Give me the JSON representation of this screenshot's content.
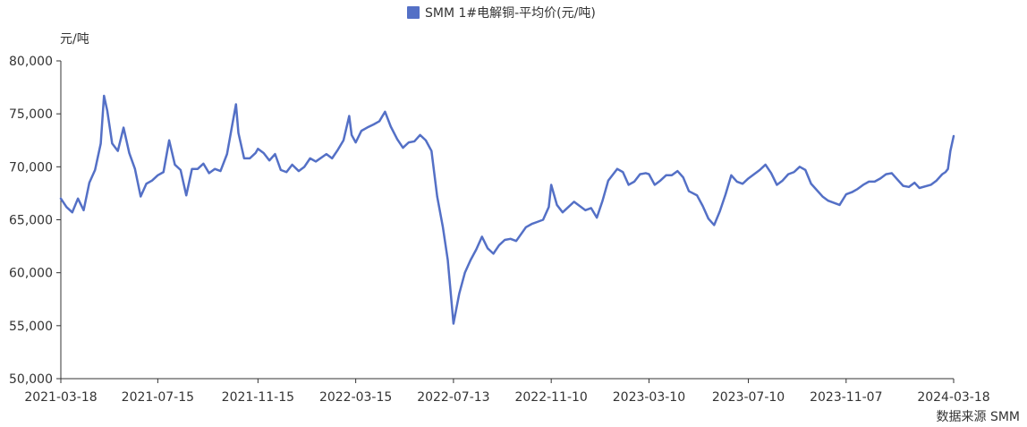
{
  "chart_data": {
    "type": "line",
    "ylabel": "元/吨",
    "source": "数据来源 SMM",
    "ylim": [
      50000,
      80000
    ],
    "yticks": [
      50000,
      55000,
      60000,
      65000,
      70000,
      75000,
      80000
    ],
    "ytick_labels": [
      "50,000",
      "55,000",
      "60,000",
      "65,000",
      "70,000",
      "75,000",
      "80,000"
    ],
    "xlim": [
      "2021-03-18",
      "2024-03-18"
    ],
    "xtick_labels": [
      "2021-03-18",
      "2021-07-15",
      "2021-11-15",
      "2022-03-15",
      "2022-07-13",
      "2022-11-10",
      "2023-03-10",
      "2023-07-10",
      "2023-11-07",
      "2024-03-18"
    ],
    "legend_position": "top-center",
    "grid": false,
    "colors": {
      "series": "#5470c6",
      "axis": "#333333"
    },
    "series": [
      {
        "name": "SMM 1#电解铜-平均价(元/吨)",
        "points": [
          [
            "2021-03-18",
            67000
          ],
          [
            "2021-03-25",
            66200
          ],
          [
            "2021-04-01",
            65700
          ],
          [
            "2021-04-08",
            67000
          ],
          [
            "2021-04-15",
            65900
          ],
          [
            "2021-04-22",
            68500
          ],
          [
            "2021-04-29",
            69700
          ],
          [
            "2021-05-06",
            72200
          ],
          [
            "2021-05-10",
            76700
          ],
          [
            "2021-05-14",
            75300
          ],
          [
            "2021-05-20",
            72200
          ],
          [
            "2021-05-27",
            71500
          ],
          [
            "2021-06-03",
            73700
          ],
          [
            "2021-06-10",
            71300
          ],
          [
            "2021-06-17",
            69800
          ],
          [
            "2021-06-24",
            67200
          ],
          [
            "2021-07-01",
            68400
          ],
          [
            "2021-07-08",
            68700
          ],
          [
            "2021-07-15",
            69200
          ],
          [
            "2021-07-22",
            69500
          ],
          [
            "2021-07-29",
            72500
          ],
          [
            "2021-08-05",
            70200
          ],
          [
            "2021-08-12",
            69700
          ],
          [
            "2021-08-19",
            67300
          ],
          [
            "2021-08-26",
            69800
          ],
          [
            "2021-09-02",
            69800
          ],
          [
            "2021-09-09",
            70300
          ],
          [
            "2021-09-16",
            69400
          ],
          [
            "2021-09-23",
            69800
          ],
          [
            "2021-09-30",
            69600
          ],
          [
            "2021-10-08",
            71200
          ],
          [
            "2021-10-15",
            74200
          ],
          [
            "2021-10-19",
            75900
          ],
          [
            "2021-10-22",
            73200
          ],
          [
            "2021-10-29",
            70800
          ],
          [
            "2021-11-05",
            70800
          ],
          [
            "2021-11-12",
            71300
          ],
          [
            "2021-11-15",
            71700
          ],
          [
            "2021-11-22",
            71300
          ],
          [
            "2021-11-29",
            70600
          ],
          [
            "2021-12-06",
            71200
          ],
          [
            "2021-12-13",
            69700
          ],
          [
            "2021-12-20",
            69500
          ],
          [
            "2021-12-27",
            70200
          ],
          [
            "2022-01-04",
            69600
          ],
          [
            "2022-01-11",
            70000
          ],
          [
            "2022-01-18",
            70800
          ],
          [
            "2022-01-25",
            70500
          ],
          [
            "2022-02-07",
            71200
          ],
          [
            "2022-02-14",
            70800
          ],
          [
            "2022-02-21",
            71600
          ],
          [
            "2022-02-28",
            72500
          ],
          [
            "2022-03-07",
            74800
          ],
          [
            "2022-03-10",
            73000
          ],
          [
            "2022-03-15",
            72300
          ],
          [
            "2022-03-22",
            73400
          ],
          [
            "2022-03-29",
            73700
          ],
          [
            "2022-04-06",
            74000
          ],
          [
            "2022-04-13",
            74300
          ],
          [
            "2022-04-20",
            75200
          ],
          [
            "2022-04-27",
            73800
          ],
          [
            "2022-05-05",
            72600
          ],
          [
            "2022-05-12",
            71800
          ],
          [
            "2022-05-19",
            72300
          ],
          [
            "2022-05-26",
            72400
          ],
          [
            "2022-06-02",
            73000
          ],
          [
            "2022-06-09",
            72500
          ],
          [
            "2022-06-16",
            71500
          ],
          [
            "2022-06-23",
            67200
          ],
          [
            "2022-06-30",
            64300
          ],
          [
            "2022-07-06",
            61200
          ],
          [
            "2022-07-13",
            55200
          ],
          [
            "2022-07-20",
            58000
          ],
          [
            "2022-07-27",
            60000
          ],
          [
            "2022-08-03",
            61200
          ],
          [
            "2022-08-10",
            62200
          ],
          [
            "2022-08-17",
            63400
          ],
          [
            "2022-08-24",
            62300
          ],
          [
            "2022-08-31",
            61800
          ],
          [
            "2022-09-07",
            62600
          ],
          [
            "2022-09-14",
            63100
          ],
          [
            "2022-09-21",
            63200
          ],
          [
            "2022-09-28",
            63000
          ],
          [
            "2022-10-10",
            64300
          ],
          [
            "2022-10-17",
            64600
          ],
          [
            "2022-10-24",
            64800
          ],
          [
            "2022-10-31",
            65000
          ],
          [
            "2022-11-07",
            66200
          ],
          [
            "2022-11-10",
            68300
          ],
          [
            "2022-11-17",
            66400
          ],
          [
            "2022-11-24",
            65700
          ],
          [
            "2022-12-01",
            66200
          ],
          [
            "2022-12-08",
            66700
          ],
          [
            "2022-12-15",
            66300
          ],
          [
            "2022-12-22",
            65900
          ],
          [
            "2022-12-29",
            66100
          ],
          [
            "2023-01-05",
            65200
          ],
          [
            "2023-01-12",
            66800
          ],
          [
            "2023-01-19",
            68700
          ],
          [
            "2023-01-30",
            69800
          ],
          [
            "2023-02-06",
            69500
          ],
          [
            "2023-02-13",
            68300
          ],
          [
            "2023-02-20",
            68600
          ],
          [
            "2023-02-27",
            69300
          ],
          [
            "2023-03-06",
            69400
          ],
          [
            "2023-03-10",
            69300
          ],
          [
            "2023-03-17",
            68300
          ],
          [
            "2023-03-24",
            68700
          ],
          [
            "2023-03-31",
            69200
          ],
          [
            "2023-04-07",
            69200
          ],
          [
            "2023-04-14",
            69600
          ],
          [
            "2023-04-21",
            69000
          ],
          [
            "2023-04-28",
            67700
          ],
          [
            "2023-05-08",
            67300
          ],
          [
            "2023-05-15",
            66300
          ],
          [
            "2023-05-22",
            65100
          ],
          [
            "2023-05-29",
            64500
          ],
          [
            "2023-06-05",
            65800
          ],
          [
            "2023-06-12",
            67400
          ],
          [
            "2023-06-19",
            69200
          ],
          [
            "2023-06-26",
            68600
          ],
          [
            "2023-07-03",
            68400
          ],
          [
            "2023-07-10",
            68900
          ],
          [
            "2023-07-17",
            69300
          ],
          [
            "2023-07-24",
            69700
          ],
          [
            "2023-07-31",
            70200
          ],
          [
            "2023-08-07",
            69400
          ],
          [
            "2023-08-14",
            68300
          ],
          [
            "2023-08-21",
            68700
          ],
          [
            "2023-08-28",
            69300
          ],
          [
            "2023-09-04",
            69500
          ],
          [
            "2023-09-11",
            70000
          ],
          [
            "2023-09-18",
            69700
          ],
          [
            "2023-09-25",
            68400
          ],
          [
            "2023-10-09",
            67200
          ],
          [
            "2023-10-16",
            66800
          ],
          [
            "2023-10-23",
            66600
          ],
          [
            "2023-10-30",
            66400
          ],
          [
            "2023-11-07",
            67400
          ],
          [
            "2023-11-14",
            67600
          ],
          [
            "2023-11-21",
            67900
          ],
          [
            "2023-11-28",
            68300
          ],
          [
            "2023-12-05",
            68600
          ],
          [
            "2023-12-12",
            68600
          ],
          [
            "2023-12-19",
            68900
          ],
          [
            "2023-12-26",
            69300
          ],
          [
            "2024-01-02",
            69400
          ],
          [
            "2024-01-09",
            68800
          ],
          [
            "2024-01-16",
            68200
          ],
          [
            "2024-01-23",
            68100
          ],
          [
            "2024-01-30",
            68500
          ],
          [
            "2024-02-05",
            68000
          ],
          [
            "2024-02-19",
            68300
          ],
          [
            "2024-02-26",
            68700
          ],
          [
            "2024-03-04",
            69300
          ],
          [
            "2024-03-08",
            69500
          ],
          [
            "2024-03-11",
            69800
          ],
          [
            "2024-03-14",
            71500
          ],
          [
            "2024-03-18",
            72900
          ]
        ]
      }
    ]
  }
}
